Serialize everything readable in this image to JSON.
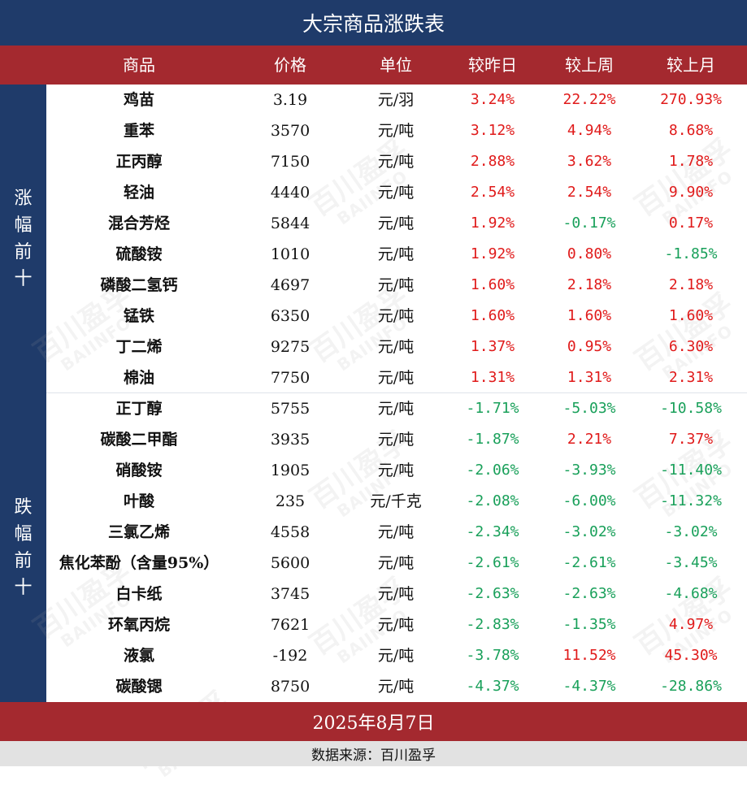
{
  "title": "大宗商品涨跌表",
  "headers": [
    "商品",
    "价格",
    "单位",
    "较昨日",
    "较上周",
    "较上月"
  ],
  "groups": {
    "up": "涨幅前十",
    "down": "跌幅前十"
  },
  "watermark": {
    "cn": "百川盈孚",
    "en": "BAIINFO"
  },
  "colors": {
    "navy": "#1f3b6a",
    "red_bar": "#a4292f",
    "positive": "#e01a1a",
    "negative": "#19a05a"
  },
  "chart_data": {
    "type": "table",
    "columns": [
      "商品",
      "价格",
      "单位",
      "较昨日",
      "较上周",
      "较上月"
    ],
    "rows": [
      [
        "鸡苗",
        "3.19",
        "元/羽",
        "3.24%",
        "22.22%",
        "270.93%"
      ],
      [
        "重苯",
        "3570",
        "元/吨",
        "3.12%",
        "4.94%",
        "8.68%"
      ],
      [
        "正丙醇",
        "7150",
        "元/吨",
        "2.88%",
        "3.62%",
        "1.78%"
      ],
      [
        "轻油",
        "4440",
        "元/吨",
        "2.54%",
        "2.54%",
        "9.90%"
      ],
      [
        "混合芳烃",
        "5844",
        "元/吨",
        "1.92%",
        "-0.17%",
        "0.17%"
      ],
      [
        "硫酸铵",
        "1010",
        "元/吨",
        "1.92%",
        "0.80%",
        "-1.85%"
      ],
      [
        "磷酸二氢钙",
        "4697",
        "元/吨",
        "1.60%",
        "2.18%",
        "2.18%"
      ],
      [
        "锰铁",
        "6350",
        "元/吨",
        "1.60%",
        "1.60%",
        "1.60%"
      ],
      [
        "丁二烯",
        "9275",
        "元/吨",
        "1.37%",
        "0.95%",
        "6.30%"
      ],
      [
        "棉油",
        "7750",
        "元/吨",
        "1.31%",
        "1.31%",
        "2.31%"
      ],
      [
        "正丁醇",
        "5755",
        "元/吨",
        "-1.71%",
        "-5.03%",
        "-10.58%"
      ],
      [
        "碳酸二甲酯",
        "3935",
        "元/吨",
        "-1.87%",
        "2.21%",
        "7.37%"
      ],
      [
        "硝酸铵",
        "1905",
        "元/吨",
        "-2.06%",
        "-3.93%",
        "-11.40%"
      ],
      [
        "叶酸",
        "235",
        "元/千克",
        "-2.08%",
        "-6.00%",
        "-11.32%"
      ],
      [
        "三氯乙烯",
        "4558",
        "元/吨",
        "-2.34%",
        "-3.02%",
        "-3.02%"
      ],
      [
        "焦化苯酚（含量95%）",
        "5600",
        "元/吨",
        "-2.61%",
        "-2.61%",
        "-3.45%"
      ],
      [
        "白卡纸",
        "3745",
        "元/吨",
        "-2.63%",
        "-2.63%",
        "-4.68%"
      ],
      [
        "环氧丙烷",
        "7621",
        "元/吨",
        "-2.83%",
        "-1.35%",
        "4.97%"
      ],
      [
        "液氯",
        "-192",
        "元/吨",
        "-3.78%",
        "11.52%",
        "45.30%"
      ],
      [
        "碳酸锶",
        "8750",
        "元/吨",
        "-4.37%",
        "-4.37%",
        "-28.86%"
      ]
    ]
  },
  "footer": {
    "date": "2025年8月7日",
    "source": "数据来源：百川盈孚"
  }
}
